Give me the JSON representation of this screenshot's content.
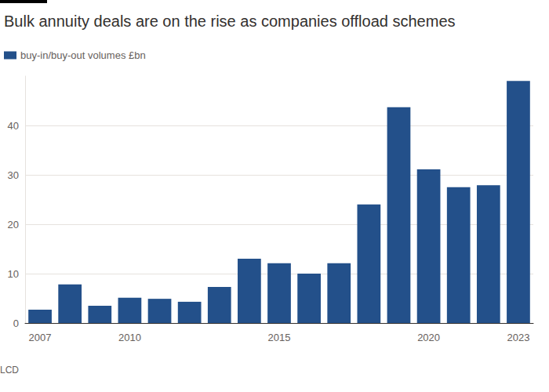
{
  "chart_data": {
    "type": "bar",
    "title": "Bulk annuity deals are on the rise as companies offload schemes",
    "source": "LCD",
    "categories": [
      "2007",
      null,
      null,
      "2010",
      null,
      null,
      null,
      null,
      "2015",
      null,
      null,
      null,
      null,
      "2020",
      null,
      null,
      "2023"
    ],
    "series": [
      {
        "name": "buy-in/buy-out volumes £bn",
        "color": "#23508a",
        "values": [
          2.7,
          7.8,
          3.5,
          5.1,
          4.9,
          4.3,
          7.3,
          13.0,
          12.1,
          10.0,
          12.1,
          24.0,
          43.7,
          31.1,
          27.5,
          27.9,
          49.0
        ]
      }
    ],
    "ylim": [
      0,
      50
    ],
    "yticks": [
      0,
      10,
      20,
      30,
      40
    ],
    "grid": true
  }
}
